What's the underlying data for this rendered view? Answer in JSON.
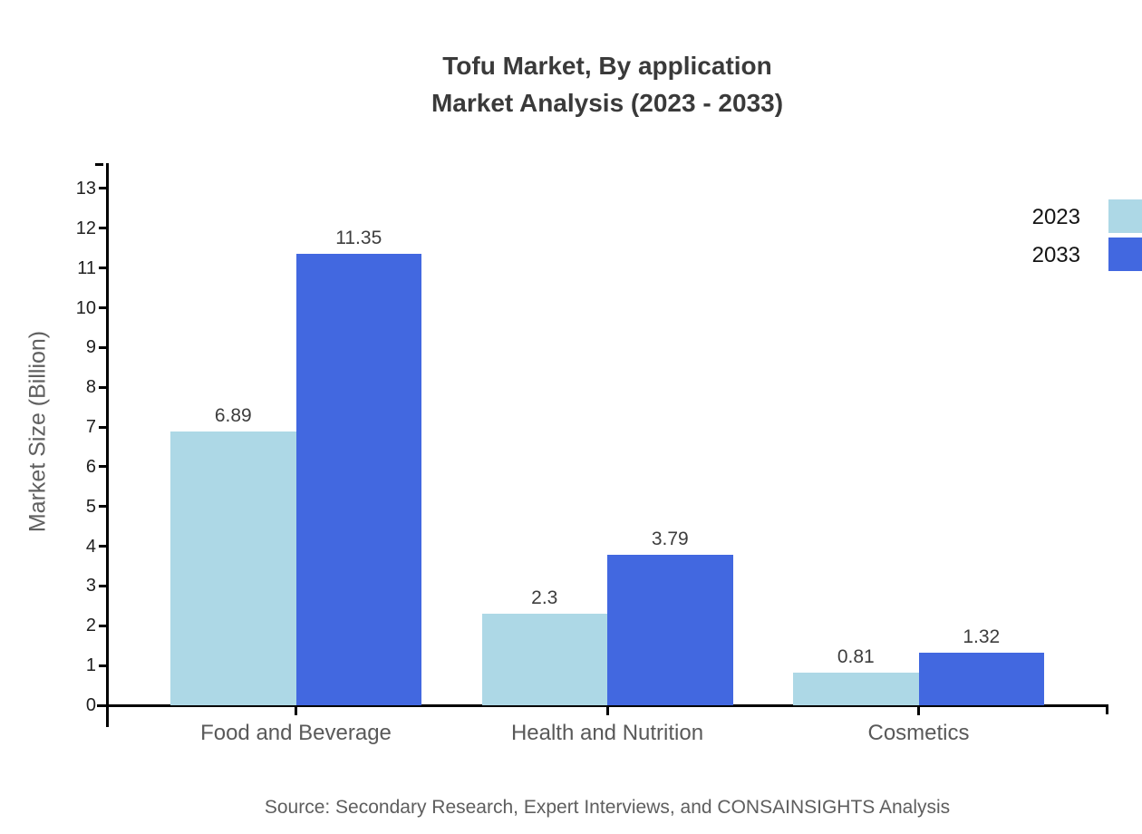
{
  "title": {
    "line1": "Tofu Market, By application",
    "line2": "Market Analysis (2023 - 2033)"
  },
  "source": "Source: Secondary Research, Expert Interviews, and CONSAINSIGHTS Analysis",
  "chart_data": {
    "type": "bar",
    "title": "Tofu Market, By application Market Analysis (2023 - 2033)",
    "categories": [
      "Food and Beverage",
      "Health and Nutrition",
      "Cosmetics"
    ],
    "series": [
      {
        "name": "2023",
        "color": "#ADD8E6",
        "values": [
          6.89,
          2.3,
          0.81
        ]
      },
      {
        "name": "2033",
        "color": "#4268E0",
        "values": [
          11.35,
          3.79,
          1.32
        ]
      }
    ],
    "xlabel": "",
    "ylabel": "Market Size (Billion)",
    "ylim": [
      0,
      13
    ],
    "ytick_step": 1,
    "grid": false,
    "legend_position": "top-right",
    "axis_color": "#000000",
    "value_labels_shown": true
  }
}
